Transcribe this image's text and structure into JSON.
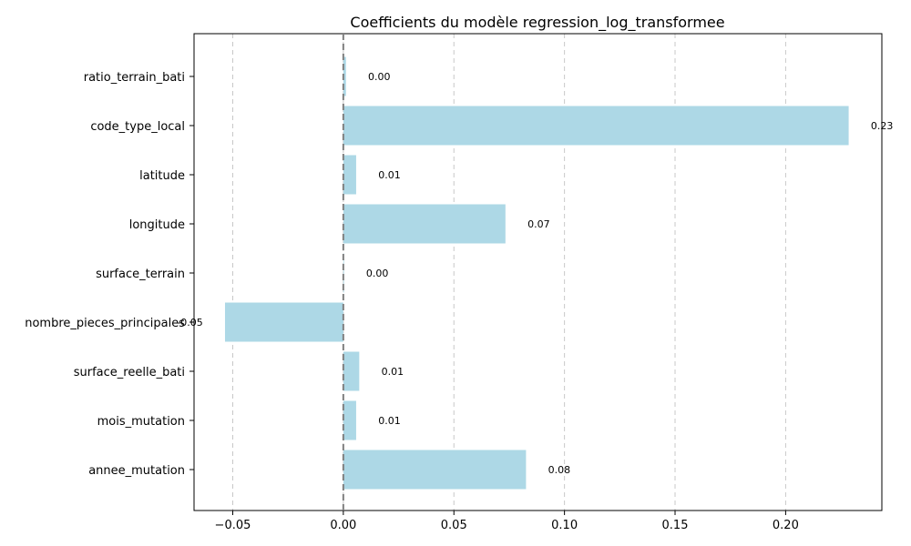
{
  "chart_data": {
    "type": "bar",
    "orientation": "horizontal",
    "title": "Coefficients du modèle regression_log_transformee",
    "xlabel": "",
    "ylabel": "",
    "categories": [
      "ratio_terrain_bati",
      "code_type_local",
      "latitude",
      "longitude",
      "surface_terrain",
      "nombre_pieces_principales",
      "surface_reelle_bati",
      "mois_mutation",
      "annee_mutation"
    ],
    "values": [
      0.0012,
      0.2285,
      0.0058,
      0.0733,
      0.0003,
      -0.0535,
      0.0072,
      0.0058,
      0.0826
    ],
    "data_labels": [
      "0.00",
      "0.23",
      "0.01",
      "0.07",
      "0.00",
      "-0.05",
      "0.01",
      "0.01",
      "0.08"
    ],
    "xlim": [
      -0.0675,
      0.2435
    ],
    "xticks": [
      -0.05,
      0.0,
      0.05,
      0.1,
      0.15,
      0.2
    ],
    "xtick_labels": [
      "−0.05",
      "0.00",
      "0.05",
      "0.10",
      "0.15",
      "0.20"
    ],
    "grid": "x",
    "zero_line": true,
    "colors": {
      "bar": "#add8e6",
      "zero_line": "#808080",
      "grid": "#c8c8c8"
    }
  }
}
